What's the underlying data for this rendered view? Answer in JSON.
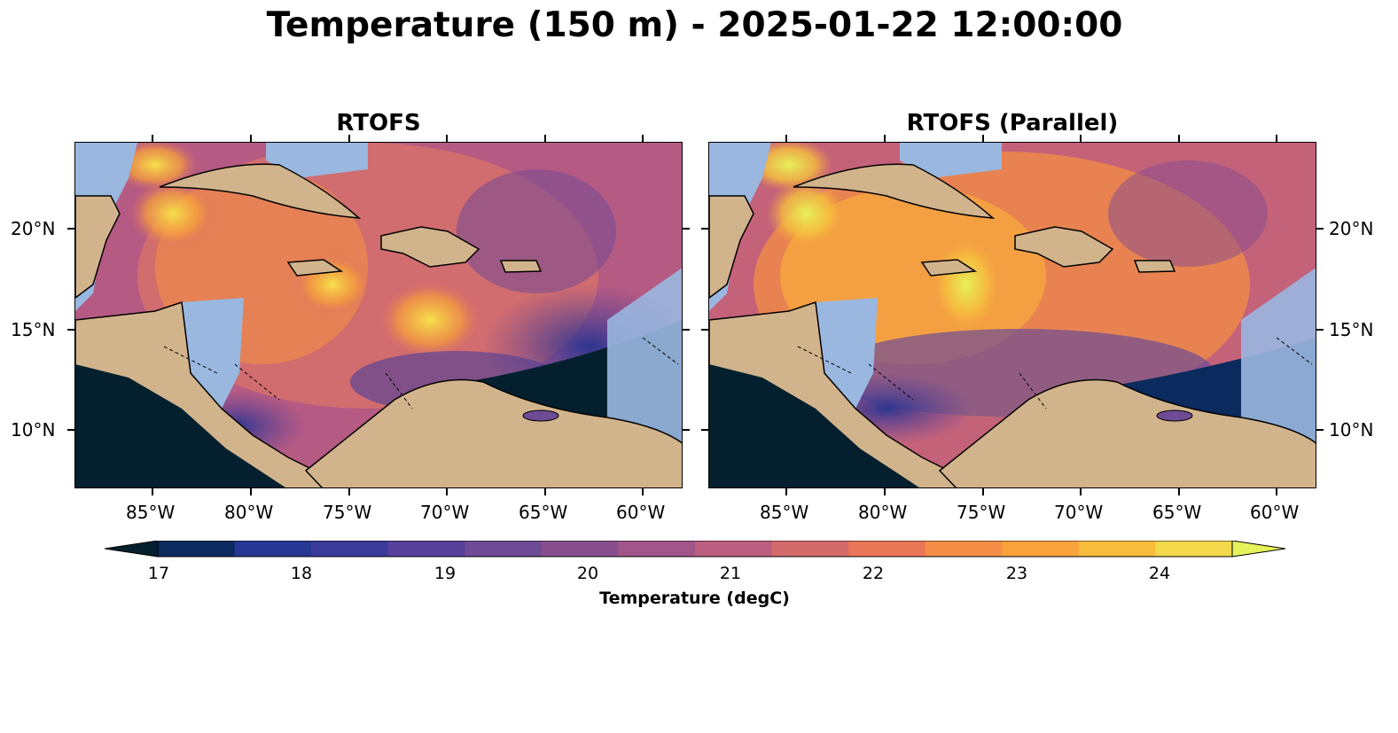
{
  "figure": {
    "title": "Temperature (150 m) - 2025-01-22 12:00:00",
    "panels": [
      {
        "title": "RTOFS",
        "lat_labels_side": "left"
      },
      {
        "title": "RTOFS (Parallel)",
        "lat_labels_side": "right"
      }
    ],
    "lon_labels": [
      "85°W",
      "80°W",
      "75°W",
      "70°W",
      "65°W",
      "60°W"
    ],
    "lat_labels": [
      "20°N",
      "15°N",
      "10°N"
    ],
    "colorbar": {
      "label": "Temperature (degC)",
      "ticks": [
        "17",
        "18",
        "19",
        "20",
        "21",
        "22",
        "23",
        "24"
      ],
      "extend": "both",
      "colors": [
        "#04202f",
        "#0b2a5e",
        "#263893",
        "#3b3b9a",
        "#56409a",
        "#6e4b95",
        "#874e8d",
        "#a15588",
        "#bb5e7f",
        "#d36a6b",
        "#ea7658",
        "#f68d47",
        "#f9a33f",
        "#f8bc3d",
        "#f2d84a",
        "#e6f25a"
      ]
    },
    "colors": {
      "land": "#d2b48c",
      "shelf": "#9ab7e0",
      "deep_cold": "#04202f"
    }
  }
}
